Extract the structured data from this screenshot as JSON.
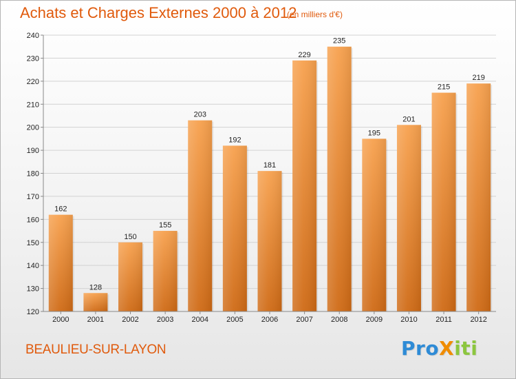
{
  "header": {
    "title": "Achats et Charges Externes 2000 à 2012",
    "subtitle": "(en milliers d'€)"
  },
  "footer": {
    "place": "BEAULIEU-SUR-LAYON",
    "logo": {
      "text": "Proxiti",
      "letters": [
        {
          "ch": "P",
          "color": "#2e8bd6"
        },
        {
          "ch": "r",
          "color": "#2e8bd6"
        },
        {
          "ch": "o",
          "color": "#2e8bd6"
        },
        {
          "ch": "X",
          "color": "#f08c00"
        },
        {
          "ch": "i",
          "color": "#8cc63f"
        },
        {
          "ch": "t",
          "color": "#8cc63f"
        },
        {
          "ch": "i",
          "color": "#8cc63f"
        }
      ]
    }
  },
  "colors": {
    "accent": "#e05a0c",
    "bar_top": "#f7a14e",
    "bar_bottom": "#cf6a15"
  },
  "chart_data": {
    "type": "bar",
    "title": "Achats et Charges Externes 2000 à 2012",
    "subtitle": "(en milliers d'€)",
    "categories": [
      "2000",
      "2001",
      "2002",
      "2003",
      "2004",
      "2005",
      "2006",
      "2007",
      "2008",
      "2009",
      "2010",
      "2011",
      "2012"
    ],
    "values": [
      162,
      128,
      150,
      155,
      203,
      192,
      181,
      229,
      235,
      195,
      201,
      215,
      219
    ],
    "ylim": [
      120,
      240
    ],
    "yticks": [
      120,
      130,
      140,
      150,
      160,
      170,
      180,
      190,
      200,
      210,
      220,
      230,
      240
    ],
    "grid": true,
    "legend": "none"
  }
}
